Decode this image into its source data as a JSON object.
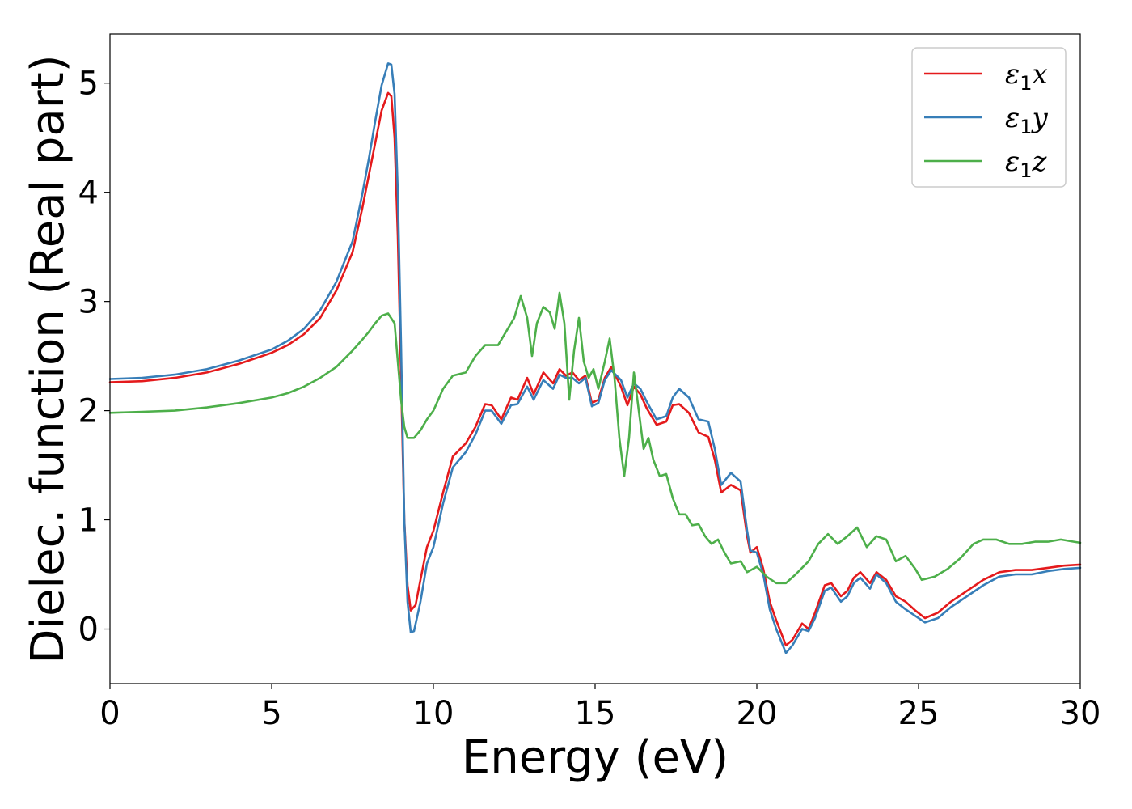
{
  "chart_data": {
    "type": "line",
    "xlabel": "Energy (eV)",
    "ylabel": "Dielec. function (Real part)",
    "xlim": [
      0,
      30
    ],
    "ylim": [
      -0.5,
      5.45
    ],
    "xticks": [
      0,
      5,
      10,
      15,
      20,
      25,
      30
    ],
    "yticks": [
      0,
      1,
      2,
      3,
      4,
      5
    ],
    "grid": false,
    "legend_position": "top-right",
    "series": [
      {
        "name": "ε1x",
        "label_base": "ε",
        "label_sub": "1",
        "label_var": "x",
        "color": "#e41a1c",
        "points": [
          [
            0,
            2.26
          ],
          [
            1,
            2.27
          ],
          [
            2,
            2.3
          ],
          [
            3,
            2.35
          ],
          [
            4,
            2.43
          ],
          [
            5,
            2.53
          ],
          [
            5.5,
            2.6
          ],
          [
            6,
            2.7
          ],
          [
            6.5,
            2.85
          ],
          [
            7,
            3.1
          ],
          [
            7.5,
            3.45
          ],
          [
            7.8,
            3.85
          ],
          [
            8,
            4.15
          ],
          [
            8.2,
            4.45
          ],
          [
            8.4,
            4.75
          ],
          [
            8.6,
            4.91
          ],
          [
            8.7,
            4.88
          ],
          [
            8.8,
            4.5
          ],
          [
            8.9,
            3.6
          ],
          [
            9,
            2.3
          ],
          [
            9.1,
            1.0
          ],
          [
            9.2,
            0.4
          ],
          [
            9.3,
            0.17
          ],
          [
            9.45,
            0.22
          ],
          [
            9.6,
            0.45
          ],
          [
            9.8,
            0.75
          ],
          [
            10,
            0.9
          ],
          [
            10.3,
            1.25
          ],
          [
            10.6,
            1.58
          ],
          [
            11,
            1.7
          ],
          [
            11.3,
            1.85
          ],
          [
            11.6,
            2.06
          ],
          [
            11.8,
            2.05
          ],
          [
            12.1,
            1.92
          ],
          [
            12.4,
            2.12
          ],
          [
            12.6,
            2.1
          ],
          [
            12.9,
            2.3
          ],
          [
            13.1,
            2.15
          ],
          [
            13.4,
            2.35
          ],
          [
            13.7,
            2.25
          ],
          [
            13.9,
            2.38
          ],
          [
            14.1,
            2.32
          ],
          [
            14.3,
            2.35
          ],
          [
            14.5,
            2.28
          ],
          [
            14.7,
            2.32
          ],
          [
            14.9,
            2.07
          ],
          [
            15.1,
            2.1
          ],
          [
            15.3,
            2.3
          ],
          [
            15.5,
            2.4
          ],
          [
            15.8,
            2.22
          ],
          [
            16,
            2.05
          ],
          [
            16.2,
            2.22
          ],
          [
            16.4,
            2.15
          ],
          [
            16.6,
            2.02
          ],
          [
            16.9,
            1.87
          ],
          [
            17.2,
            1.9
          ],
          [
            17.4,
            2.05
          ],
          [
            17.6,
            2.06
          ],
          [
            17.9,
            1.98
          ],
          [
            18.2,
            1.8
          ],
          [
            18.5,
            1.76
          ],
          [
            18.7,
            1.55
          ],
          [
            18.9,
            1.25
          ],
          [
            19.2,
            1.32
          ],
          [
            19.5,
            1.27
          ],
          [
            19.7,
            0.85
          ],
          [
            19.8,
            0.7
          ],
          [
            20,
            0.75
          ],
          [
            20.2,
            0.55
          ],
          [
            20.4,
            0.25
          ],
          [
            20.6,
            0.08
          ],
          [
            20.9,
            -0.15
          ],
          [
            21.1,
            -0.1
          ],
          [
            21.4,
            0.05
          ],
          [
            21.6,
            0.0
          ],
          [
            21.8,
            0.15
          ],
          [
            22.1,
            0.4
          ],
          [
            22.3,
            0.42
          ],
          [
            22.6,
            0.3
          ],
          [
            22.8,
            0.35
          ],
          [
            23,
            0.47
          ],
          [
            23.2,
            0.52
          ],
          [
            23.5,
            0.42
          ],
          [
            23.7,
            0.52
          ],
          [
            24,
            0.45
          ],
          [
            24.3,
            0.3
          ],
          [
            24.6,
            0.25
          ],
          [
            24.9,
            0.17
          ],
          [
            25.2,
            0.1
          ],
          [
            25.6,
            0.15
          ],
          [
            26,
            0.25
          ],
          [
            26.5,
            0.35
          ],
          [
            27,
            0.45
          ],
          [
            27.5,
            0.52
          ],
          [
            28,
            0.54
          ],
          [
            28.5,
            0.54
          ],
          [
            29,
            0.56
          ],
          [
            29.5,
            0.58
          ],
          [
            30,
            0.59
          ]
        ]
      },
      {
        "name": "ε1y",
        "label_base": "ε",
        "label_sub": "1",
        "label_var": "y",
        "color": "#377eb8",
        "points": [
          [
            0,
            2.29
          ],
          [
            1,
            2.3
          ],
          [
            2,
            2.33
          ],
          [
            3,
            2.38
          ],
          [
            4,
            2.46
          ],
          [
            5,
            2.56
          ],
          [
            5.5,
            2.64
          ],
          [
            6,
            2.75
          ],
          [
            6.5,
            2.92
          ],
          [
            7,
            3.18
          ],
          [
            7.5,
            3.55
          ],
          [
            7.8,
            3.98
          ],
          [
            8,
            4.3
          ],
          [
            8.2,
            4.65
          ],
          [
            8.4,
            4.98
          ],
          [
            8.6,
            5.18
          ],
          [
            8.7,
            5.17
          ],
          [
            8.8,
            4.9
          ],
          [
            8.9,
            4.0
          ],
          [
            9,
            2.6
          ],
          [
            9.1,
            1.0
          ],
          [
            9.2,
            0.25
          ],
          [
            9.3,
            -0.03
          ],
          [
            9.4,
            -0.02
          ],
          [
            9.6,
            0.25
          ],
          [
            9.8,
            0.6
          ],
          [
            10,
            0.75
          ],
          [
            10.3,
            1.15
          ],
          [
            10.6,
            1.48
          ],
          [
            11,
            1.62
          ],
          [
            11.3,
            1.78
          ],
          [
            11.6,
            2.0
          ],
          [
            11.8,
            2.0
          ],
          [
            12.1,
            1.88
          ],
          [
            12.4,
            2.05
          ],
          [
            12.6,
            2.06
          ],
          [
            12.9,
            2.22
          ],
          [
            13.1,
            2.1
          ],
          [
            13.4,
            2.28
          ],
          [
            13.7,
            2.2
          ],
          [
            13.9,
            2.33
          ],
          [
            14.1,
            2.3
          ],
          [
            14.3,
            2.3
          ],
          [
            14.5,
            2.25
          ],
          [
            14.7,
            2.3
          ],
          [
            14.9,
            2.04
          ],
          [
            15.1,
            2.07
          ],
          [
            15.3,
            2.28
          ],
          [
            15.5,
            2.37
          ],
          [
            15.8,
            2.28
          ],
          [
            16,
            2.12
          ],
          [
            16.2,
            2.25
          ],
          [
            16.4,
            2.2
          ],
          [
            16.6,
            2.08
          ],
          [
            16.9,
            1.92
          ],
          [
            17.2,
            1.95
          ],
          [
            17.4,
            2.12
          ],
          [
            17.6,
            2.2
          ],
          [
            17.9,
            2.12
          ],
          [
            18.2,
            1.92
          ],
          [
            18.5,
            1.9
          ],
          [
            18.7,
            1.65
          ],
          [
            18.9,
            1.32
          ],
          [
            19.2,
            1.43
          ],
          [
            19.5,
            1.35
          ],
          [
            19.7,
            0.9
          ],
          [
            19.8,
            0.72
          ],
          [
            20,
            0.7
          ],
          [
            20.2,
            0.5
          ],
          [
            20.4,
            0.18
          ],
          [
            20.6,
            0.0
          ],
          [
            20.9,
            -0.22
          ],
          [
            21.1,
            -0.15
          ],
          [
            21.4,
            0.0
          ],
          [
            21.6,
            -0.02
          ],
          [
            21.8,
            0.1
          ],
          [
            22.1,
            0.35
          ],
          [
            22.3,
            0.38
          ],
          [
            22.6,
            0.25
          ],
          [
            22.8,
            0.3
          ],
          [
            23,
            0.42
          ],
          [
            23.2,
            0.47
          ],
          [
            23.5,
            0.37
          ],
          [
            23.7,
            0.5
          ],
          [
            24,
            0.42
          ],
          [
            24.3,
            0.25
          ],
          [
            24.6,
            0.18
          ],
          [
            24.9,
            0.12
          ],
          [
            25.2,
            0.06
          ],
          [
            25.6,
            0.1
          ],
          [
            26,
            0.2
          ],
          [
            26.5,
            0.3
          ],
          [
            27,
            0.4
          ],
          [
            27.5,
            0.48
          ],
          [
            28,
            0.5
          ],
          [
            28.5,
            0.5
          ],
          [
            29,
            0.53
          ],
          [
            29.5,
            0.55
          ],
          [
            30,
            0.56
          ]
        ]
      },
      {
        "name": "ε1z",
        "label_base": "ε",
        "label_sub": "1",
        "label_var": "z",
        "color": "#4daf4a",
        "points": [
          [
            0,
            1.98
          ],
          [
            1,
            1.99
          ],
          [
            2,
            2.0
          ],
          [
            3,
            2.03
          ],
          [
            4,
            2.07
          ],
          [
            5,
            2.12
          ],
          [
            5.5,
            2.16
          ],
          [
            6,
            2.22
          ],
          [
            6.5,
            2.3
          ],
          [
            7,
            2.4
          ],
          [
            7.5,
            2.55
          ],
          [
            7.8,
            2.65
          ],
          [
            8,
            2.72
          ],
          [
            8.2,
            2.8
          ],
          [
            8.4,
            2.87
          ],
          [
            8.6,
            2.89
          ],
          [
            8.8,
            2.8
          ],
          [
            9,
            2.1
          ],
          [
            9.1,
            1.85
          ],
          [
            9.2,
            1.75
          ],
          [
            9.4,
            1.75
          ],
          [
            9.6,
            1.82
          ],
          [
            9.8,
            1.92
          ],
          [
            10,
            2.0
          ],
          [
            10.3,
            2.2
          ],
          [
            10.6,
            2.32
          ],
          [
            11,
            2.35
          ],
          [
            11.3,
            2.5
          ],
          [
            11.6,
            2.6
          ],
          [
            12,
            2.6
          ],
          [
            12.3,
            2.75
          ],
          [
            12.5,
            2.85
          ],
          [
            12.7,
            3.05
          ],
          [
            12.9,
            2.85
          ],
          [
            13.05,
            2.5
          ],
          [
            13.2,
            2.8
          ],
          [
            13.4,
            2.95
          ],
          [
            13.6,
            2.9
          ],
          [
            13.75,
            2.75
          ],
          [
            13.9,
            3.08
          ],
          [
            14.05,
            2.8
          ],
          [
            14.2,
            2.1
          ],
          [
            14.35,
            2.55
          ],
          [
            14.5,
            2.85
          ],
          [
            14.65,
            2.45
          ],
          [
            14.8,
            2.3
          ],
          [
            14.95,
            2.38
          ],
          [
            15.1,
            2.2
          ],
          [
            15.3,
            2.45
          ],
          [
            15.45,
            2.66
          ],
          [
            15.6,
            2.3
          ],
          [
            15.75,
            1.75
          ],
          [
            15.9,
            1.4
          ],
          [
            16.05,
            1.75
          ],
          [
            16.2,
            2.35
          ],
          [
            16.35,
            2.0
          ],
          [
            16.5,
            1.65
          ],
          [
            16.65,
            1.75
          ],
          [
            16.8,
            1.55
          ],
          [
            17,
            1.4
          ],
          [
            17.2,
            1.42
          ],
          [
            17.4,
            1.2
          ],
          [
            17.6,
            1.05
          ],
          [
            17.8,
            1.05
          ],
          [
            18,
            0.95
          ],
          [
            18.2,
            0.96
          ],
          [
            18.4,
            0.85
          ],
          [
            18.6,
            0.78
          ],
          [
            18.8,
            0.82
          ],
          [
            19,
            0.7
          ],
          [
            19.2,
            0.6
          ],
          [
            19.5,
            0.62
          ],
          [
            19.7,
            0.52
          ],
          [
            20,
            0.57
          ],
          [
            20.3,
            0.48
          ],
          [
            20.6,
            0.42
          ],
          [
            20.9,
            0.42
          ],
          [
            21.2,
            0.5
          ],
          [
            21.6,
            0.62
          ],
          [
            21.9,
            0.78
          ],
          [
            22.2,
            0.87
          ],
          [
            22.5,
            0.78
          ],
          [
            22.8,
            0.85
          ],
          [
            23.1,
            0.93
          ],
          [
            23.4,
            0.75
          ],
          [
            23.7,
            0.85
          ],
          [
            24,
            0.82
          ],
          [
            24.3,
            0.62
          ],
          [
            24.6,
            0.67
          ],
          [
            24.9,
            0.55
          ],
          [
            25.1,
            0.45
          ],
          [
            25.5,
            0.48
          ],
          [
            25.9,
            0.55
          ],
          [
            26.3,
            0.65
          ],
          [
            26.7,
            0.78
          ],
          [
            27,
            0.82
          ],
          [
            27.4,
            0.82
          ],
          [
            27.8,
            0.78
          ],
          [
            28.2,
            0.78
          ],
          [
            28.6,
            0.8
          ],
          [
            29,
            0.8
          ],
          [
            29.4,
            0.82
          ],
          [
            29.8,
            0.8
          ],
          [
            30,
            0.79
          ]
        ]
      }
    ]
  }
}
